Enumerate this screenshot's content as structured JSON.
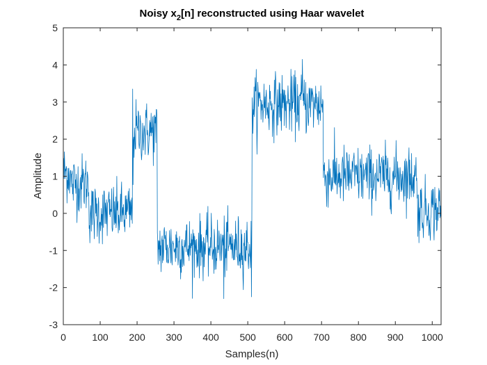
{
  "figure": {
    "title_parts": [
      "Noisy x",
      "2",
      "[n] reconstructed using Haar wavelet"
    ]
  },
  "chart_data": {
    "type": "line",
    "title": "Noisy x2[n] reconstructed using Haar wavelet",
    "xlabel": "Samples(n)",
    "ylabel": "Amplitude",
    "xlim": [
      0,
      1024
    ],
    "ylim": [
      -3,
      5
    ],
    "xticks": [
      0,
      100,
      200,
      300,
      400,
      500,
      600,
      700,
      800,
      900,
      1000
    ],
    "yticks": [
      -3,
      -2,
      -1,
      0,
      1,
      2,
      3,
      4,
      5
    ],
    "grid": false,
    "legend": "none",
    "line_color": "#0072BD",
    "series": [
      {
        "segments": [
          {
            "x_start": 0,
            "x_end": 20,
            "level": 1.1,
            "noise_std": 0.4
          },
          {
            "x_start": 20,
            "x_end": 70,
            "level": 0.8,
            "noise_std": 0.4
          },
          {
            "x_start": 70,
            "x_end": 190,
            "level": 0.0,
            "noise_std": 0.4
          },
          {
            "x_start": 190,
            "x_end": 255,
            "level": 2.2,
            "noise_std": 0.4
          },
          {
            "x_start": 255,
            "x_end": 512,
            "level": -0.9,
            "noise_std": 0.4
          },
          {
            "x_start": 512,
            "x_end": 705,
            "level": 2.95,
            "noise_std": 0.4
          },
          {
            "x_start": 705,
            "x_end": 960,
            "level": 1.0,
            "noise_std": 0.4
          },
          {
            "x_start": 960,
            "x_end": 1024,
            "level": 0.1,
            "noise_std": 0.4
          }
        ],
        "samples": 1024,
        "notable_points": [
          {
            "x": 188,
            "y": 3.35
          },
          {
            "x": 435,
            "y": -2.3
          },
          {
            "x": 510,
            "y": -2.25
          },
          {
            "x": 648,
            "y": 4.15
          }
        ]
      }
    ]
  }
}
